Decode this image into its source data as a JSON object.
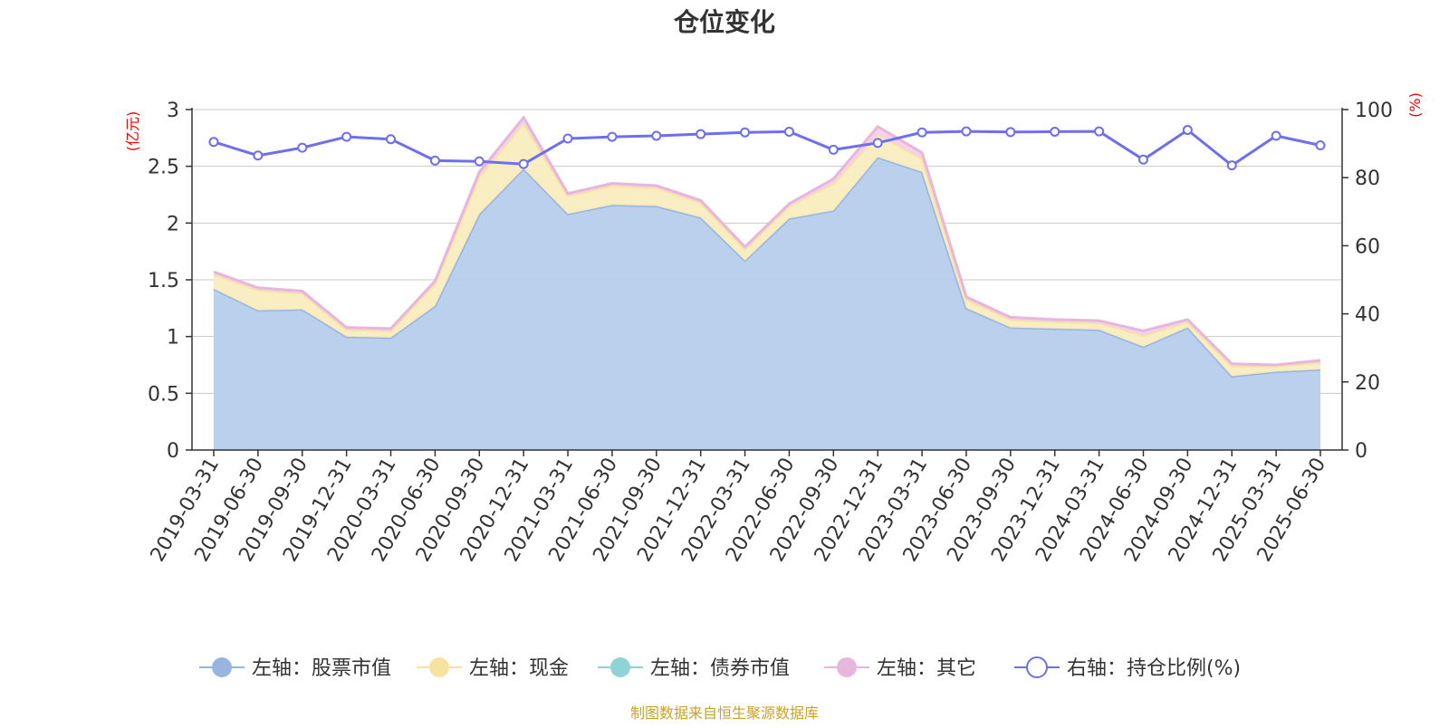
{
  "chart_data": {
    "type": "area",
    "title": "仓位变化",
    "left_axis_unit": "(亿元)",
    "right_axis_unit": "(%)",
    "left_ylim": [
      0,
      3
    ],
    "left_ticks": [
      "0",
      "0.5",
      "1",
      "1.5",
      "2",
      "2.5",
      "3"
    ],
    "right_ylim": [
      0,
      100
    ],
    "right_ticks": [
      "0",
      "20",
      "40",
      "60",
      "80",
      "100"
    ],
    "grid": true,
    "legend_position": "bottom",
    "categories": [
      "2019-03-31",
      "2019-06-30",
      "2019-09-30",
      "2019-12-31",
      "2020-03-31",
      "2020-06-30",
      "2020-09-30",
      "2020-12-31",
      "2021-03-31",
      "2021-06-30",
      "2021-09-30",
      "2021-12-31",
      "2022-03-31",
      "2022-06-30",
      "2022-09-30",
      "2022-12-31",
      "2023-03-31",
      "2023-06-30",
      "2023-09-30",
      "2023-12-31",
      "2024-03-31",
      "2024-06-30",
      "2024-09-30",
      "2024-12-31",
      "2025-03-31",
      "2025-06-30"
    ],
    "series": [
      {
        "name": "左轴：股票市值",
        "axis": "left",
        "kind": "area",
        "color": "#97b5e0",
        "fill": "#b7cdeb",
        "values": [
          1.42,
          1.23,
          1.24,
          1.0,
          0.99,
          1.27,
          2.08,
          2.48,
          2.08,
          2.16,
          2.15,
          2.05,
          1.67,
          2.04,
          2.11,
          2.58,
          2.45,
          1.25,
          1.08,
          1.07,
          1.06,
          0.91,
          1.08,
          0.65,
          0.69,
          0.71
        ]
      },
      {
        "name": "左轴：现金",
        "axis": "left",
        "kind": "area",
        "color": "#f7e3a0",
        "fill": "#f9ecbf",
        "values": [
          0.13,
          0.18,
          0.14,
          0.06,
          0.06,
          0.2,
          0.33,
          0.4,
          0.16,
          0.17,
          0.16,
          0.13,
          0.1,
          0.11,
          0.24,
          0.2,
          0.12,
          0.08,
          0.07,
          0.06,
          0.06,
          0.1,
          0.05,
          0.09,
          0.05,
          0.06
        ]
      },
      {
        "name": "左轴：债券市值",
        "axis": "left",
        "kind": "area",
        "color": "#8fd3d6",
        "fill": "#bde6e8",
        "values": [
          0,
          0,
          0,
          0,
          0,
          0,
          0,
          0,
          0,
          0,
          0,
          0,
          0,
          0,
          0,
          0,
          0,
          0,
          0,
          0,
          0,
          0,
          0,
          0,
          0,
          0
        ]
      },
      {
        "name": "左轴：其它",
        "axis": "left",
        "kind": "area",
        "color": "#e8b6dc",
        "fill": "#f2d0ea",
        "values": [
          0.02,
          0.02,
          0.02,
          0.02,
          0.02,
          0.02,
          0.04,
          0.05,
          0.02,
          0.02,
          0.02,
          0.02,
          0.02,
          0.02,
          0.04,
          0.07,
          0.05,
          0.02,
          0.02,
          0.02,
          0.02,
          0.04,
          0.02,
          0.02,
          0.01,
          0.02
        ]
      },
      {
        "name": "右轴：持仓比例(%)",
        "axis": "right",
        "kind": "line",
        "color": "#6e6ef0",
        "values": [
          90.5,
          86.5,
          88.8,
          92.0,
          91.3,
          85.0,
          84.8,
          84.0,
          91.5,
          92.0,
          92.3,
          92.8,
          93.3,
          93.5,
          88.2,
          90.2,
          93.3,
          93.6,
          93.4,
          93.5,
          93.6,
          85.3,
          94.0,
          83.6,
          92.3,
          89.5
        ]
      }
    ]
  },
  "source_note": "制图数据来自恒生聚源数据库"
}
